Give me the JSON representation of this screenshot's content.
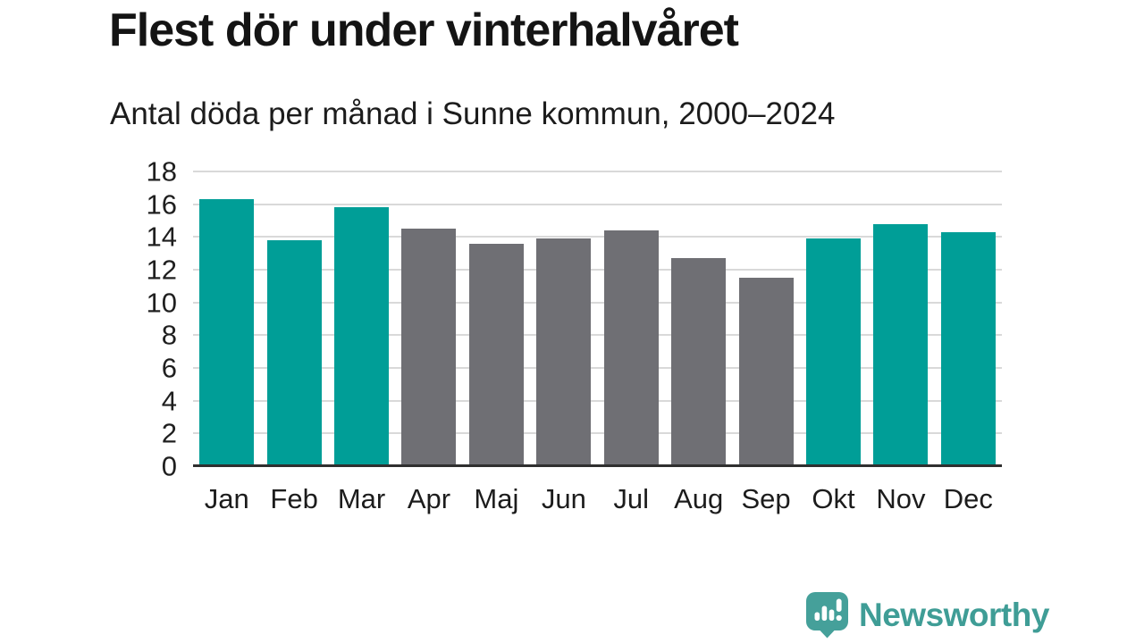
{
  "header": {
    "title": "Flest dör under vinterhalvåret",
    "subtitle": "Antal döda per månad i Sunne kommun, 2000–2024"
  },
  "chart_data": {
    "type": "bar",
    "title": "Flest dör under vinterhalvåret",
    "subtitle": "Antal döda per månad i Sunne kommun, 2000–2024",
    "categories": [
      "Jan",
      "Feb",
      "Mar",
      "Apr",
      "Maj",
      "Jun",
      "Jul",
      "Aug",
      "Sep",
      "Okt",
      "Nov",
      "Dec"
    ],
    "values": [
      16.3,
      13.8,
      15.8,
      14.5,
      13.6,
      13.9,
      14.4,
      12.7,
      11.5,
      13.9,
      14.8,
      14.3
    ],
    "highlighted": [
      true,
      true,
      true,
      false,
      false,
      false,
      false,
      false,
      false,
      true,
      true,
      true
    ],
    "highlight_color": "#009e97",
    "base_color": "#6f6f74",
    "xlabel": "",
    "ylabel": "",
    "ylim": [
      0,
      18
    ],
    "yticks": [
      0,
      2,
      4,
      6,
      8,
      10,
      12,
      14,
      16,
      18
    ],
    "grid": "horizontal",
    "legend": "none"
  },
  "footer": {
    "brand": "Newsworthy",
    "brand_color": "#3f9d96",
    "logo_icon": "bar-chart-speech-bubble-icon"
  },
  "colors": {
    "background": "#ffffff",
    "gridline": "#d9d9d9",
    "axis_line": "#2f2f2f",
    "text": "#1a1a1a"
  }
}
